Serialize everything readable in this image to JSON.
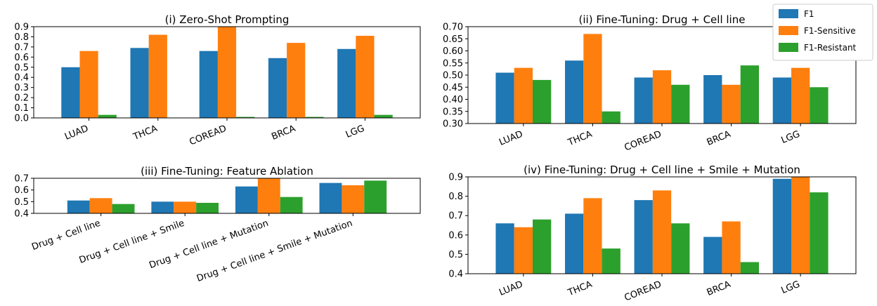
{
  "colors": {
    "F1": "#1f77b4",
    "F1-Sensitive": "#ff7f0e",
    "F1-Resistant": "#2ca02c"
  },
  "legend": {
    "entries": [
      "F1",
      "F1-Sensitive",
      "F1-Resistant"
    ],
    "placement": "top-right"
  },
  "chart_data": [
    {
      "type": "bar",
      "title": "(i) Zero-Shot Prompting",
      "categories": [
        "LUAD",
        "THCA",
        "COREAD",
        "BRCA",
        "LGG"
      ],
      "series": [
        {
          "name": "F1",
          "values": [
            0.5,
            0.69,
            0.66,
            0.59,
            0.68
          ]
        },
        {
          "name": "F1-Sensitive",
          "values": [
            0.66,
            0.82,
            0.9,
            0.74,
            0.81
          ]
        },
        {
          "name": "F1-Resistant",
          "values": [
            0.03,
            0.0,
            0.01,
            0.01,
            0.03
          ]
        }
      ],
      "ylim": [
        0.0,
        0.9
      ],
      "yticks": [
        "0.0",
        "0.1",
        "0.2",
        "0.3",
        "0.4",
        "0.5",
        "0.6",
        "0.7",
        "0.8",
        "0.9"
      ],
      "grid": false
    },
    {
      "type": "bar",
      "title": "(ii) Fine-Tuning: Drug + Cell line",
      "categories": [
        "LUAD",
        "THCA",
        "COREAD",
        "BRCA",
        "LGG"
      ],
      "series": [
        {
          "name": "F1",
          "values": [
            0.51,
            0.56,
            0.49,
            0.5,
            0.49
          ]
        },
        {
          "name": "F1-Sensitive",
          "values": [
            0.53,
            0.67,
            0.52,
            0.46,
            0.53
          ]
        },
        {
          "name": "F1-Resistant",
          "values": [
            0.48,
            0.35,
            0.46,
            0.54,
            0.45
          ]
        }
      ],
      "ylim": [
        0.3,
        0.7
      ],
      "yticks": [
        "0.30",
        "0.35",
        "0.40",
        "0.45",
        "0.50",
        "0.55",
        "0.60",
        "0.65",
        "0.70"
      ],
      "grid": false
    },
    {
      "type": "bar",
      "title": "(iii) Fine-Tuning: Feature Ablation",
      "categories": [
        "Drug + Cell line",
        "Drug + Cell line + Smile",
        "Drug + Cell line + Mutation",
        "Drug + Cell line + Smile + Mutation"
      ],
      "series": [
        {
          "name": "F1",
          "values": [
            0.51,
            0.5,
            0.63,
            0.66
          ]
        },
        {
          "name": "F1-Sensitive",
          "values": [
            0.53,
            0.5,
            0.7,
            0.64
          ]
        },
        {
          "name": "F1-Resistant",
          "values": [
            0.48,
            0.49,
            0.54,
            0.68
          ]
        }
      ],
      "ylim": [
        0.4,
        0.7
      ],
      "yticks": [
        "0.4",
        "0.5",
        "0.6",
        "0.7"
      ],
      "grid": false
    },
    {
      "type": "bar",
      "title": "(iv) Fine-Tuning: Drug + Cell line + Smile + Mutation",
      "categories": [
        "LUAD",
        "THCA",
        "COREAD",
        "BRCA",
        "LGG"
      ],
      "series": [
        {
          "name": "F1",
          "values": [
            0.66,
            0.71,
            0.78,
            0.59,
            0.89
          ]
        },
        {
          "name": "F1-Sensitive",
          "values": [
            0.64,
            0.79,
            0.83,
            0.67,
            0.9
          ]
        },
        {
          "name": "F1-Resistant",
          "values": [
            0.68,
            0.53,
            0.66,
            0.46,
            0.82
          ]
        }
      ],
      "ylim": [
        0.4,
        0.9
      ],
      "yticks": [
        "0.4",
        "0.5",
        "0.6",
        "0.7",
        "0.8",
        "0.9"
      ],
      "grid": false
    }
  ]
}
